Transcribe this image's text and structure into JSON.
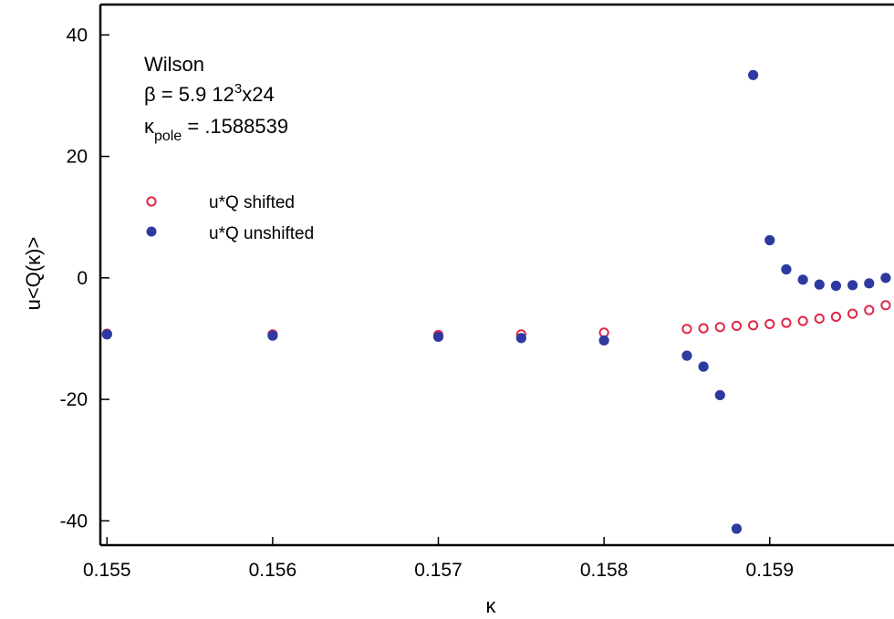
{
  "chart_data": {
    "type": "scatter",
    "title": "",
    "xlabel": "κ",
    "ylabel": "u<Q(κ)>",
    "xlim": [
      0.15496,
      0.15975
    ],
    "ylim": [
      -44,
      45
    ],
    "x_ticks": [
      0.155,
      0.156,
      0.157,
      0.158,
      0.159
    ],
    "x_tick_labels": [
      "0.155",
      "0.156",
      "0.157",
      "0.158",
      "0.159"
    ],
    "y_ticks": [
      -40,
      -20,
      0,
      20,
      40
    ],
    "y_tick_labels": [
      "-40",
      "-20",
      "0",
      "20",
      "40"
    ],
    "grid": false,
    "legend_position": "upper-left",
    "annotations": {
      "line1": "Wilson",
      "line2_prefix": "β = 5.9 12",
      "line2_sup": "3",
      "line2_suffix": "x24",
      "line3_kappa": "κ",
      "line3_sub": "pole",
      "line3_value": " = .1588539"
    },
    "series": [
      {
        "name": "u*Q shifted",
        "marker": "open-circle",
        "color": "#e0284a",
        "points": [
          [
            0.155,
            -9.2
          ],
          [
            0.156,
            -9.3
          ],
          [
            0.157,
            -9.4
          ],
          [
            0.1575,
            -9.3
          ],
          [
            0.158,
            -9.0
          ],
          [
            0.1585,
            -8.4
          ],
          [
            0.1586,
            -8.3
          ],
          [
            0.1587,
            -8.1
          ],
          [
            0.1588,
            -7.9
          ],
          [
            0.1589,
            -7.8
          ],
          [
            0.159,
            -7.6
          ],
          [
            0.1591,
            -7.4
          ],
          [
            0.1592,
            -7.1
          ],
          [
            0.1593,
            -6.7
          ],
          [
            0.1594,
            -6.4
          ],
          [
            0.1595,
            -5.9
          ],
          [
            0.1596,
            -5.3
          ],
          [
            0.1597,
            -4.5
          ]
        ]
      },
      {
        "name": "u*Q unshifted",
        "marker": "filled-circle",
        "color": "#2d3aa0",
        "points": [
          [
            0.155,
            -9.3
          ],
          [
            0.156,
            -9.5
          ],
          [
            0.157,
            -9.7
          ],
          [
            0.1575,
            -9.9
          ],
          [
            0.158,
            -10.3
          ],
          [
            0.1585,
            -12.8
          ],
          [
            0.1586,
            -14.6
          ],
          [
            0.1587,
            -19.3
          ],
          [
            0.1588,
            -41.3
          ],
          [
            0.1589,
            33.4
          ],
          [
            0.159,
            6.2
          ],
          [
            0.1591,
            1.4
          ],
          [
            0.1592,
            -0.3
          ],
          [
            0.1593,
            -1.1
          ],
          [
            0.1594,
            -1.3
          ],
          [
            0.1595,
            -1.2
          ],
          [
            0.1596,
            -0.9
          ],
          [
            0.1597,
            0.0
          ]
        ]
      }
    ]
  }
}
